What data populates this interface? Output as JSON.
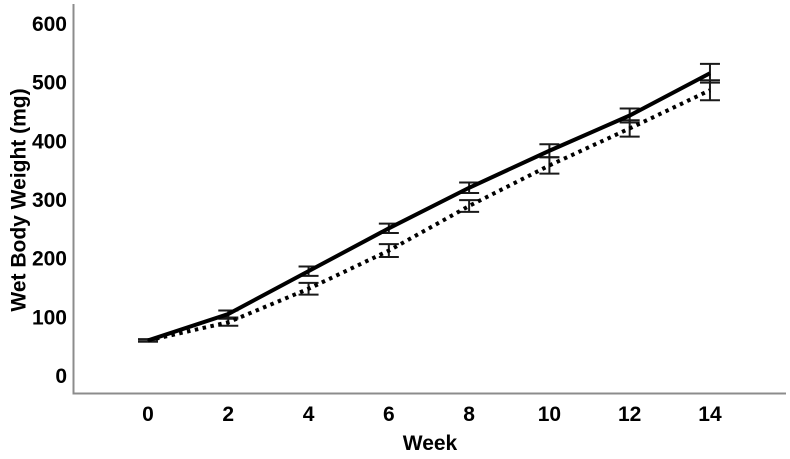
{
  "figure": {
    "background": "#ffffff"
  },
  "chart_data": {
    "type": "line",
    "title": "",
    "xlabel": "Week",
    "ylabel": "Wet Body Weight (mg)",
    "x": [
      0,
      2,
      4,
      6,
      8,
      10,
      12,
      14
    ],
    "x_ticks": [
      0,
      2,
      4,
      6,
      8,
      10,
      12,
      14
    ],
    "y_ticks": [
      0,
      100,
      200,
      300,
      400,
      500,
      600
    ],
    "xlim": [
      -2,
      16
    ],
    "ylim": [
      0,
      630
    ],
    "grid": false,
    "legend": "none",
    "axis_color": "#8c8c8c",
    "error_bar_color": "#1a1a1a",
    "text_color": "#000000",
    "series": [
      {
        "name": "solid-line",
        "line_style": "solid",
        "color": "#000000",
        "values": [
          60,
          105,
          178,
          251,
          320,
          383,
          443,
          515
        ],
        "error_bars": [
          2,
          6,
          8,
          8,
          9,
          11,
          12,
          16
        ]
      },
      {
        "name": "dotted-line",
        "line_style": "dotted",
        "color": "#000000",
        "values": [
          60,
          91,
          148,
          213,
          289,
          358,
          421,
          486
        ],
        "error_bars": [
          2,
          6,
          10,
          11,
          10,
          14,
          14,
          17
        ]
      }
    ]
  }
}
